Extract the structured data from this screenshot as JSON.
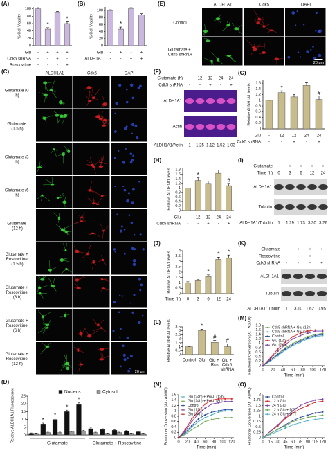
{
  "chart_data": [
    {
      "type": "bar",
      "label": "(A)",
      "ylabel": "% Cell Viability",
      "categories": [
        null,
        null,
        null,
        null
      ],
      "values": [
        100,
        45,
        90,
        60
      ],
      "errors": [
        3,
        4,
        3,
        5
      ],
      "markers": [
        null,
        "*",
        null,
        "*"
      ],
      "color": "#cbb8df",
      "ylim": [
        0,
        105
      ],
      "yticks": [
        0,
        20,
        40,
        60,
        80,
        100
      ],
      "conditions": [
        {
          "name": "Glu",
          "values": [
            "-",
            "+",
            "+",
            "+"
          ]
        },
        {
          "name": "Cdk5 shRNA",
          "values": [
            "-",
            "-",
            "+",
            "-"
          ]
        },
        {
          "name": "Roscovitine",
          "values": [
            "-",
            "-",
            "-",
            "+"
          ]
        }
      ]
    },
    {
      "type": "bar",
      "label": "(B)",
      "ylabel": "% Cell Viability",
      "categories": [
        null,
        null,
        null,
        null
      ],
      "values": [
        100,
        47,
        105,
        87
      ],
      "errors": [
        2,
        6,
        3,
        4
      ],
      "markers": [
        null,
        "*",
        null,
        null
      ],
      "color": "#cbb8df",
      "ylim": [
        0,
        110
      ],
      "yticks": [
        0,
        20,
        40,
        60,
        80,
        100
      ],
      "conditions": [
        {
          "name": "Glu",
          "values": [
            "-",
            "+",
            "-",
            "+"
          ]
        },
        {
          "name": "ALDH1A1",
          "values": [
            "-",
            "-",
            "+",
            "+"
          ]
        }
      ]
    },
    {
      "type": "bar",
      "label": "(G)",
      "ylabel": "Relative ALDH1A1 levels",
      "categories": [
        null,
        null,
        null,
        null,
        null
      ],
      "values": [
        1,
        1.27,
        1.12,
        1.52,
        1.03
      ],
      "errors": [
        0,
        0.06,
        0.08,
        0.1,
        0.12
      ],
      "markers": [
        null,
        "*",
        null,
        null,
        "#"
      ],
      "color": "#c9bc8c",
      "ylim": [
        0,
        1.7
      ],
      "yticks": [
        0,
        0.2,
        0.4,
        0.6,
        0.8,
        1,
        1.2,
        1.4,
        1.6
      ],
      "conditions": [
        {
          "name": "Glu",
          "values": [
            "-",
            "12",
            "12",
            "24",
            "24"
          ]
        },
        {
          "name": "Cdk5 shRNA",
          "values": [
            "-",
            "-",
            "+",
            "-",
            "+"
          ]
        }
      ]
    },
    {
      "type": "bar",
      "label": "(H)",
      "ylabel": "Relative ALDH1A1 levels",
      "categories": [
        null,
        null,
        null,
        null,
        null
      ],
      "values": [
        1,
        1.33,
        1.2,
        1.65,
        1.1
      ],
      "errors": [
        0,
        0.12,
        0.1,
        0.15,
        0.1
      ],
      "markers": [
        null,
        "*",
        null,
        null,
        "#"
      ],
      "color": "#c9bc8c",
      "ylim": [
        0,
        1.9
      ],
      "yticks": [
        0,
        0.2,
        0.4,
        0.6,
        0.8,
        1,
        1.2,
        1.4,
        1.6,
        1.8
      ],
      "conditions": [
        {
          "name": "Glu",
          "values": [
            "-",
            "12",
            "12",
            "24",
            "24"
          ]
        },
        {
          "name": "Cdk5 shRNA",
          "values": [
            "-",
            "-",
            "+",
            "-",
            "+"
          ]
        }
      ]
    },
    {
      "type": "bar",
      "label": "(J)",
      "ylabel": "Relative ALDH1A1 levels",
      "xlabel": "Time (h)",
      "categories": [
        "0",
        "3",
        "6",
        "12",
        "24"
      ],
      "values": [
        1,
        1.2,
        1.6,
        3.2,
        3.3
      ],
      "errors": [
        0.1,
        0.1,
        0.15,
        0.2,
        0.3
      ],
      "markers": [
        null,
        null,
        "*",
        "*",
        "*"
      ],
      "color": "#c9bc8c",
      "ylim": [
        0,
        4
      ],
      "yticks": [
        0,
        0.5,
        1,
        1.5,
        2,
        2.5,
        3,
        3.5,
        4
      ]
    },
    {
      "type": "bar",
      "label": "(L)",
      "ylabel": "Relative ALDH1A1 levels",
      "categories": [
        "Control",
        "Glu",
        "Glu + Ros",
        "Glu + Cdk5 shRNA"
      ],
      "values": [
        1,
        3.05,
        1.55,
        1.0
      ],
      "errors": [
        0.05,
        0.15,
        0.25,
        0.35
      ],
      "markers": [
        null,
        "*",
        "#",
        "#"
      ],
      "color": "#c9bc8c",
      "ylim": [
        0,
        3.5
      ],
      "yticks": [
        0,
        0.5,
        1,
        1.5,
        2,
        2.5,
        3,
        3.5
      ]
    },
    {
      "type": "grouped_bar",
      "label": "(D)",
      "ylabel": "Relative ALDH1A1 Fluorescence",
      "categories": [
        null,
        null,
        null,
        null,
        null,
        null,
        null,
        null,
        null,
        null
      ],
      "group_labels": [
        "Glutamate",
        "Glutamate + Roscovitine"
      ],
      "ylim": [
        0,
        25
      ],
      "yticks": [
        0,
        5,
        10,
        15,
        20,
        25
      ],
      "legend": "upper center",
      "series": [
        {
          "name": "Nucleus",
          "color": "#111111",
          "values": [
            1,
            7,
            10,
            15,
            19.5,
            4,
            3.5,
            3,
            2.5,
            2
          ],
          "errors": [
            0.3,
            0.6,
            0.8,
            1,
            1.2,
            0.5,
            0.5,
            0.4,
            0.4,
            0.3
          ],
          "markers": [
            null,
            "*",
            "*",
            "*",
            "*",
            null,
            null,
            null,
            null,
            null
          ]
        },
        {
          "name": "Cytosol",
          "color": "#9a9a9a",
          "values": [
            1,
            1.5,
            1.5,
            2,
            2.5,
            1.5,
            1,
            1.5,
            1,
            1
          ],
          "errors": [
            0.2,
            0.3,
            0.3,
            0.4,
            0.5,
            0.3,
            0.2,
            0.3,
            0.2,
            0.2
          ]
        }
      ]
    },
    {
      "type": "line",
      "label": "(M)",
      "ylabel": "Fractional Conversion (At - A0/A0)",
      "xlabel": "Time (min)",
      "x": [
        0,
        15,
        30,
        45,
        60,
        75,
        90,
        105,
        120
      ],
      "xlim": [
        0,
        125
      ],
      "xticks": [
        0,
        20,
        40,
        60,
        80,
        100,
        120
      ],
      "ylim": [
        0,
        1.8
      ],
      "yticks": [
        0,
        0.2,
        0.4,
        0.6,
        0.8,
        1,
        1.2,
        1.4,
        1.6,
        1.8
      ],
      "legend": "upper left",
      "series": [
        {
          "name": "Cdk5 shRNA + Glu (12h)",
          "color": "#6aa84f",
          "values": [
            0,
            0.25,
            0.55,
            0.8,
            1.0,
            1.15,
            1.3,
            1.4,
            1.45
          ]
        },
        {
          "name": "Cdk5 shRNA + Glu (24h)",
          "color": "#4fb0c6",
          "values": [
            0,
            0.2,
            0.45,
            0.7,
            0.9,
            1.05,
            1.2,
            1.3,
            1.35
          ]
        },
        {
          "name": "Control",
          "color": "#2e4a9e",
          "values": [
            0,
            0.25,
            0.5,
            0.75,
            0.95,
            1.1,
            1.25,
            1.35,
            1.4
          ]
        },
        {
          "name": "Glu (12h)",
          "color": "#d62728",
          "values": [
            0,
            0.35,
            0.75,
            1.05,
            1.3,
            1.45,
            1.55,
            1.6,
            1.6
          ]
        },
        {
          "name": "Glu (24h)",
          "color": "#7b3fa0",
          "values": [
            0,
            0.3,
            0.65,
            0.95,
            1.2,
            1.35,
            1.45,
            1.55,
            1.55
          ]
        }
      ]
    },
    {
      "type": "line",
      "label": "(N)",
      "ylabel": "Fractional Conversion (At - A0/A0)",
      "xlabel": "Time (min)",
      "x": [
        0,
        15,
        30,
        45,
        60,
        75,
        90,
        105,
        120
      ],
      "xlim": [
        0,
        125
      ],
      "xticks": [
        0,
        20,
        40,
        60,
        80,
        100,
        120
      ],
      "ylim": [
        0,
        1.6
      ],
      "yticks": [
        0,
        0.2,
        0.4,
        0.6,
        0.8,
        1,
        1.2,
        1.4,
        1.6
      ],
      "legend": "upper left",
      "series": [
        {
          "name": "Glu (24h) + Prx-II (12h)",
          "color": "#4fb0c6",
          "values": [
            0,
            0.15,
            0.4,
            0.6,
            0.75,
            0.85,
            0.95,
            1.0,
            1.0
          ]
        },
        {
          "name": "Glu (24h) + Prx-II (8h)",
          "color": "#6aa84f",
          "values": [
            0,
            0.12,
            0.3,
            0.45,
            0.6,
            0.68,
            0.72,
            0.75,
            0.75
          ]
        },
        {
          "name": "Control",
          "color": "#2e4a9e",
          "values": [
            0,
            0.2,
            0.45,
            0.7,
            0.85,
            0.95,
            1.0,
            1.05,
            1.05
          ]
        },
        {
          "name": "Glu (12h)",
          "color": "#7b3fa0",
          "values": [
            0,
            0.25,
            0.6,
            0.9,
            1.1,
            1.25,
            1.3,
            1.35,
            1.35
          ]
        },
        {
          "name": "Glu (24h)",
          "color": "#d62728",
          "values": [
            0,
            0.3,
            0.7,
            1.0,
            1.25,
            1.4,
            1.45,
            1.45,
            1.45
          ]
        }
      ]
    },
    {
      "type": "line",
      "label": "(O)",
      "ylabel": "Fractional Conversion (At - A0/A0)",
      "xlabel": "Time (min)",
      "x": [
        0,
        15,
        30,
        45,
        60,
        75,
        90,
        105,
        120
      ],
      "xlim": [
        0,
        125
      ],
      "xticks": [
        0,
        15,
        30,
        45,
        60,
        75,
        90,
        105,
        120
      ],
      "ylim": [
        0,
        2
      ],
      "yticks": [
        0,
        0.25,
        0.5,
        0.75,
        1,
        1.25,
        1.5,
        1.75,
        2
      ],
      "legend": "upper left",
      "series": [
        {
          "name": "Control",
          "color": "#2e4a9e",
          "values": [
            0,
            0.2,
            0.4,
            0.6,
            0.8,
            0.95,
            1.05,
            1.15,
            1.2
          ]
        },
        {
          "name": "12 h Glu",
          "color": "#d62728",
          "values": [
            0,
            0.3,
            0.55,
            0.9,
            1.15,
            1.35,
            1.5,
            1.65,
            1.7
          ]
        },
        {
          "name": "24 h Glu",
          "color": "#7b3fa0",
          "values": [
            0,
            0.3,
            0.6,
            0.95,
            1.25,
            1.5,
            1.65,
            1.75,
            1.8
          ]
        },
        {
          "name": "12 h Glu + DTT",
          "color": "#6aa84f",
          "values": [
            0,
            0.2,
            0.4,
            0.55,
            0.75,
            0.85,
            0.95,
            1.0,
            1.05
          ]
        },
        {
          "name": "24 h Glu + DTT",
          "color": "#4fb0c6",
          "values": [
            0,
            0.15,
            0.3,
            0.45,
            0.6,
            0.7,
            0.8,
            0.85,
            0.9
          ]
        }
      ]
    }
  ],
  "image_panels": [
    {
      "label": "(E)",
      "columns": [
        "ALDH1A1",
        "Cdk5",
        "DAPI"
      ],
      "rows": [
        "Control",
        "Glutamate + Cdk5 shRNA"
      ],
      "scale_bar": "20 μm",
      "channel_colors": [
        "#3cdc3c",
        "#e02020",
        "#3050e0"
      ]
    },
    {
      "label": "(C)",
      "columns": [
        "ALDH1A1",
        "Cdk5",
        "DAPI"
      ],
      "rows": [
        "Glutamate (0 h)",
        "Glutamate (1.5 h)",
        "Glutamate (3 h)",
        "Glutamate (6 h)",
        "Glutamate (12 h)",
        "Glutamate + Roscovitine (1.5 h)",
        "Glutamate + Roscovitine (3 h)",
        "Glutamate + Roscovitine (6 h)",
        "Glutamate + Roscovitine (12 h)"
      ],
      "scale_bar": "20 μm",
      "channel_colors": [
        "#3cdc3c",
        "#e02020",
        "#3050e0"
      ]
    }
  ],
  "blots": [
    {
      "label": "(F)",
      "header_rows": [
        {
          "name": "Glutamate (h)",
          "values": [
            "-",
            "12",
            "12",
            "24",
            "24"
          ]
        },
        {
          "name": "Cdk5 shRNA",
          "values": [
            "-",
            "-",
            "+",
            "-",
            "+"
          ]
        }
      ],
      "bands": [
        "ALDH1A1",
        "Actin"
      ],
      "ratio": {
        "name": "ALDH1A1/Actin",
        "values": [
          "1",
          "1.25",
          "1.12",
          "1.52",
          "1.03"
        ]
      },
      "color": "#f05cd0",
      "background": "#4b1c8c"
    },
    {
      "label": "(I)",
      "header_rows": [
        {
          "name": "Glutamate",
          "values": [
            "-",
            "+",
            "+",
            "+",
            "+"
          ]
        },
        {
          "name": "Time (h)",
          "values": [
            "0",
            "3",
            "6",
            "12",
            "24"
          ]
        }
      ],
      "bands": [
        "ALDH1A1",
        "Tubulin"
      ],
      "ratio": {
        "name": "ALDH1A1/Tubulin",
        "values": [
          "1",
          "1.29",
          "1.73",
          "3.30",
          "3.26"
        ]
      },
      "color": "#1a1a1a",
      "background": "#d8d8d8"
    },
    {
      "label": "(K)",
      "header_rows": [
        {
          "name": "Glutamate",
          "values": [
            "-",
            "+",
            "+",
            "+"
          ]
        },
        {
          "name": "Roscovitine",
          "values": [
            "-",
            "-",
            "+",
            "-"
          ]
        },
        {
          "name": "Cdk5 shRNA",
          "values": [
            "-",
            "-",
            "-",
            "+"
          ]
        }
      ],
      "bands": [
        "ALDH1A1",
        "Tubulin"
      ],
      "ratio": {
        "name": "ALDH1A1/Tubulin",
        "values": [
          "1",
          "3.10",
          "1.62",
          "0.95"
        ]
      },
      "color": "#1a1a1a",
      "background": "#d8d8d8"
    }
  ]
}
